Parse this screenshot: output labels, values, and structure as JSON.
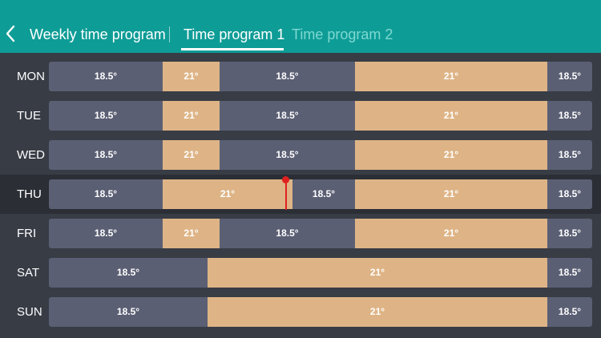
{
  "header": {
    "back_icon": "chevron-left-icon",
    "title": "Weekly time program",
    "tabs": [
      {
        "label": "Time program 1",
        "active": true
      },
      {
        "label": "Time program 2",
        "active": false
      }
    ]
  },
  "colors": {
    "header": "#0e9c96",
    "background": "#383c45",
    "low_segment": "#5b5f74",
    "high_segment": "#deb486",
    "current_time_marker": "#e0201f"
  },
  "schedule": [
    {
      "day": "MON",
      "segments": [
        {
          "label": "18.5°",
          "level": "low"
        },
        {
          "label": "21°",
          "level": "high"
        },
        {
          "label": "18.5°",
          "level": "low"
        },
        {
          "label": "21°",
          "level": "high"
        },
        {
          "label": "18.5°",
          "level": "low"
        }
      ]
    },
    {
      "day": "TUE",
      "segments": [
        {
          "label": "18.5°",
          "level": "low"
        },
        {
          "label": "21°",
          "level": "high"
        },
        {
          "label": "18.5°",
          "level": "low"
        },
        {
          "label": "21°",
          "level": "high"
        },
        {
          "label": "18.5°",
          "level": "low"
        }
      ]
    },
    {
      "day": "WED",
      "segments": [
        {
          "label": "18.5°",
          "level": "low"
        },
        {
          "label": "21°",
          "level": "high"
        },
        {
          "label": "18.5°",
          "level": "low"
        },
        {
          "label": "21°",
          "level": "high"
        },
        {
          "label": "18.5°",
          "level": "low"
        }
      ]
    },
    {
      "day": "THU",
      "today": true,
      "segments": [
        {
          "label": "18.5°",
          "level": "low"
        },
        {
          "label": "21°",
          "level": "high"
        },
        {
          "label": "18.5°",
          "level": "low"
        },
        {
          "label": "21°",
          "level": "high"
        },
        {
          "label": "18.5°",
          "level": "low"
        }
      ]
    },
    {
      "day": "FRI",
      "segments": [
        {
          "label": "18.5°",
          "level": "low"
        },
        {
          "label": "21°",
          "level": "high"
        },
        {
          "label": "18.5°",
          "level": "low"
        },
        {
          "label": "21°",
          "level": "high"
        },
        {
          "label": "18.5°",
          "level": "low"
        }
      ]
    },
    {
      "day": "SAT",
      "segments": [
        {
          "label": "18.5°",
          "level": "low"
        },
        {
          "label": "21°",
          "level": "high"
        },
        {
          "label": "18.5°",
          "level": "low"
        }
      ]
    },
    {
      "day": "SUN",
      "segments": [
        {
          "label": "18.5°",
          "level": "low"
        },
        {
          "label": "21°",
          "level": "high"
        },
        {
          "label": "18.5°",
          "level": "low"
        }
      ]
    }
  ]
}
